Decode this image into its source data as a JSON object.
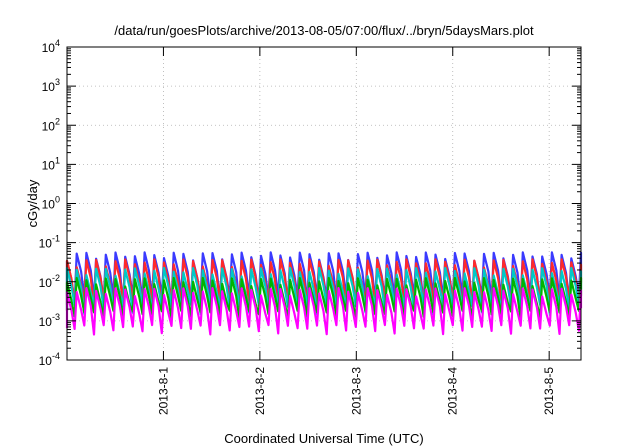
{
  "chart_data": {
    "type": "line",
    "title": "/data/run/goesPlots/archive/2013-08-05/07:00/flux/../bryn/5daysMars.plot",
    "xlabel": "Coordinated Universal Time (UTC)",
    "ylabel": "cGy/day",
    "yscale": "log",
    "ylim": [
      0.0001,
      10000
    ],
    "xlim_days": [
      0,
      5.33
    ],
    "grid": true,
    "y_ticks": [
      {
        "exp": -4,
        "base": "10",
        "power": "-4"
      },
      {
        "exp": -3,
        "base": "10",
        "power": "-3"
      },
      {
        "exp": -2,
        "base": "10",
        "power": "-2"
      },
      {
        "exp": -1,
        "base": "10",
        "power": "-1"
      },
      {
        "exp": 0,
        "base": "10",
        "power": "0"
      },
      {
        "exp": 1,
        "base": "10",
        "power": "1"
      },
      {
        "exp": 2,
        "base": "10",
        "power": "2"
      },
      {
        "exp": 3,
        "base": "10",
        "power": "3"
      },
      {
        "exp": 4,
        "base": "10",
        "power": "4"
      }
    ],
    "x_ticks": [
      {
        "day": 1,
        "label": "2013-8-1"
      },
      {
        "day": 2,
        "label": "2013-8-2"
      },
      {
        "day": 3,
        "label": "2013-8-3"
      },
      {
        "day": 4,
        "label": "2013-8-4"
      },
      {
        "day": 5,
        "label": "2013-8-5"
      }
    ],
    "cycles_per_day": 10,
    "series": [
      {
        "color": "#3a3aff",
        "peak": 0.045,
        "low": 0.0033
      },
      {
        "color": "#ff2a2a",
        "peak": 0.03,
        "low": 0.0025
      },
      {
        "color": "#00c8c8",
        "peak": 0.018,
        "low": 0.002
      },
      {
        "color": "#00b400",
        "peak": 0.01,
        "low": 0.0014
      },
      {
        "color": "#ff00ff",
        "peak": 0.0055,
        "low": 0.0006
      }
    ]
  }
}
